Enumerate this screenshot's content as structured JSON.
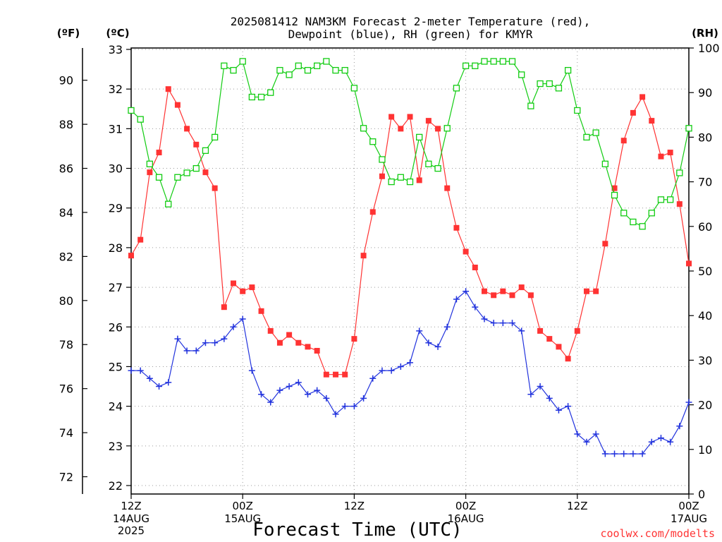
{
  "chart_data": {
    "type": "line",
    "title_line1": "2025081412 NAM3KM Forecast 2-meter Temperature (red),",
    "title_line2": "Dewpoint (blue), RH (green) for KMYR",
    "xlabel": "Forecast Time (UTC)",
    "credit": "coolwx.com/modelts",
    "unit_f": "(ºF)",
    "unit_c": "(ºC)",
    "unit_rh": "(RH)",
    "x_ticks": [
      {
        "hour": 0,
        "line1": "12Z",
        "line2": "14AUG",
        "line3": "2025"
      },
      {
        "hour": 12,
        "line1": "00Z",
        "line2": "15AUG",
        "line3": ""
      },
      {
        "hour": 24,
        "line1": "12Z",
        "line2": "",
        "line3": ""
      },
      {
        "hour": 36,
        "line1": "00Z",
        "line2": "16AUG",
        "line3": ""
      },
      {
        "hour": 48,
        "line1": "12Z",
        "line2": "",
        "line3": ""
      },
      {
        "hour": 60,
        "line1": "00Z",
        "line2": "17AUG",
        "line3": ""
      }
    ],
    "xlim": [
      0,
      60
    ],
    "c_ylim": [
      22,
      33
    ],
    "c_ticks": [
      22,
      23,
      24,
      25,
      26,
      27,
      28,
      29,
      30,
      31,
      32,
      33
    ],
    "f_ticks": [
      72,
      74,
      76,
      78,
      80,
      82,
      84,
      86,
      88,
      90
    ],
    "rh_ylim": [
      0,
      100
    ],
    "rh_ticks": [
      0,
      10,
      20,
      30,
      40,
      50,
      60,
      70,
      80,
      90,
      100
    ],
    "grid": true,
    "colors": {
      "temperature": "#ff3333",
      "dewpoint": "#2233dd",
      "rh": "#11cc11"
    },
    "series": [
      {
        "key": "temperature",
        "axis": "c",
        "marker": "filled-square",
        "values": [
          27.8,
          28.2,
          29.9,
          30.4,
          32.0,
          31.6,
          31.0,
          30.6,
          29.9,
          29.5,
          26.5,
          27.1,
          26.9,
          27.0,
          26.4,
          25.9,
          25.6,
          25.8,
          25.6,
          25.5,
          25.4,
          24.8,
          24.8,
          24.8,
          25.7,
          27.8,
          28.9,
          29.8,
          31.3,
          31.0,
          31.3,
          29.7,
          31.2,
          31.0,
          29.5,
          28.5,
          27.9,
          27.5,
          26.9,
          26.8,
          26.9,
          26.8,
          27.0,
          26.8,
          25.9,
          25.7,
          25.5,
          25.2,
          25.9,
          26.9,
          26.9,
          28.1,
          29.5,
          30.7,
          31.4,
          31.8,
          31.2,
          30.3,
          30.4,
          29.1,
          27.6
        ]
      },
      {
        "key": "dewpoint",
        "axis": "c",
        "marker": "plus",
        "values": [
          24.9,
          24.9,
          24.7,
          24.5,
          24.6,
          25.7,
          25.4,
          25.4,
          25.6,
          25.6,
          25.7,
          26.0,
          26.2,
          24.9,
          24.3,
          24.1,
          24.4,
          24.5,
          24.6,
          24.3,
          24.4,
          24.2,
          23.8,
          24.0,
          24.0,
          24.2,
          24.7,
          24.9,
          24.9,
          25.0,
          25.1,
          25.9,
          25.6,
          25.5,
          26.0,
          26.7,
          26.9,
          26.5,
          26.2,
          26.1,
          26.1,
          26.1,
          25.9,
          24.3,
          24.5,
          24.2,
          23.9,
          24.0,
          23.3,
          23.1,
          23.3,
          22.8,
          22.8,
          22.8,
          22.8,
          22.8,
          23.1,
          23.2,
          23.1,
          23.5,
          24.1
        ]
      },
      {
        "key": "rh",
        "axis": "rh",
        "marker": "open-square",
        "values": [
          86,
          84,
          74,
          71,
          65,
          71,
          72,
          73,
          77,
          80,
          96,
          95,
          97,
          89,
          89,
          90,
          95,
          94,
          96,
          95,
          96,
          97,
          95,
          95,
          91,
          82,
          79,
          75,
          70,
          71,
          70,
          80,
          74,
          73,
          82,
          91,
          96,
          96,
          97,
          97,
          97,
          97,
          94,
          87,
          92,
          92,
          91,
          95,
          86,
          80,
          81,
          74,
          67,
          63,
          61,
          60,
          63,
          66,
          66,
          72,
          82
        ]
      }
    ]
  }
}
